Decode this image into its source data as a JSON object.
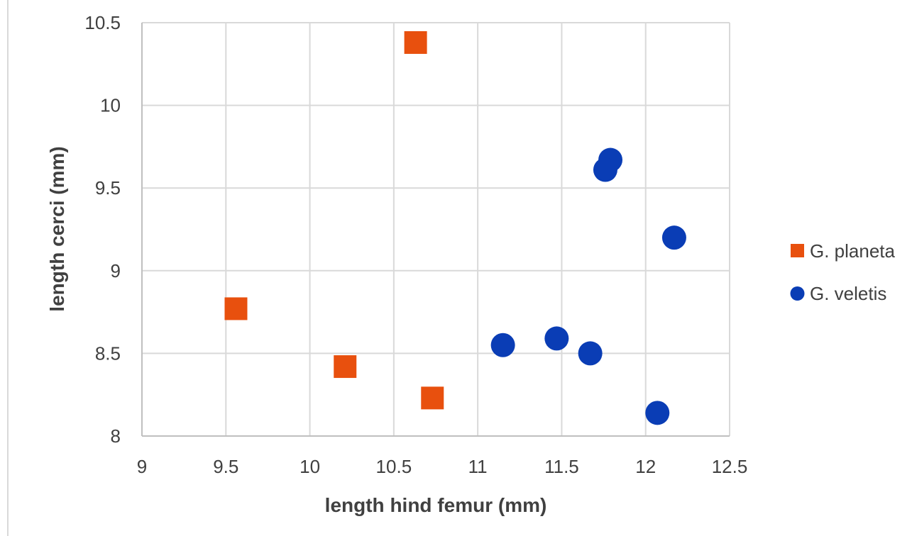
{
  "chart_data": {
    "type": "scatter",
    "title": "",
    "xlabel": "length hind femur (mm)",
    "ylabel": "length cerci (mm)",
    "xlim": [
      9,
      12.5
    ],
    "ylim": [
      8,
      10.5
    ],
    "x_ticks": [
      "9",
      "9.5",
      "10",
      "10.5",
      "11",
      "11.5",
      "12",
      "12.5"
    ],
    "y_ticks": [
      "8",
      "8.5",
      "9",
      "9.5",
      "10",
      "10.5"
    ],
    "grid": true,
    "legend_position": "right",
    "series": [
      {
        "name": "G. planeta",
        "marker": "square",
        "color": "#E8500E",
        "points": [
          {
            "x": 10.63,
            "y": 10.38
          },
          {
            "x": 9.56,
            "y": 8.77
          },
          {
            "x": 10.21,
            "y": 8.42
          },
          {
            "x": 10.73,
            "y": 8.23
          }
        ]
      },
      {
        "name": "G. veletis",
        "marker": "circle",
        "color": "#0A3DB5",
        "points": [
          {
            "x": 11.79,
            "y": 9.67
          },
          {
            "x": 11.76,
            "y": 9.61
          },
          {
            "x": 12.17,
            "y": 9.2
          },
          {
            "x": 11.15,
            "y": 8.55
          },
          {
            "x": 11.47,
            "y": 8.59
          },
          {
            "x": 11.67,
            "y": 8.5
          },
          {
            "x": 12.07,
            "y": 8.14
          }
        ]
      }
    ]
  }
}
